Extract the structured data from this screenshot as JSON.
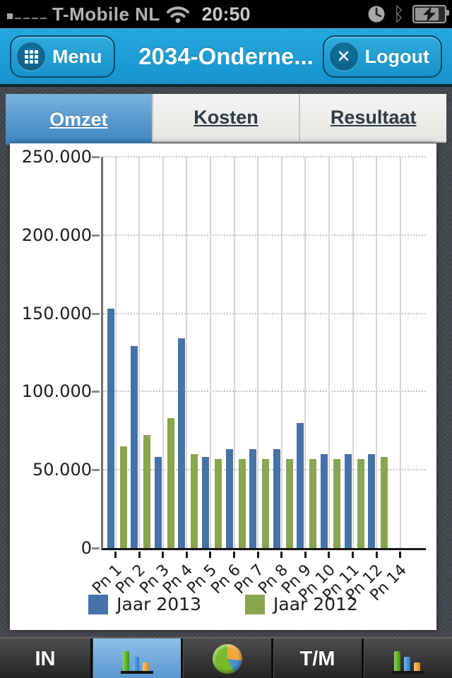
{
  "status_bar": {
    "carrier": "T-Mobile NL",
    "time": "20:50",
    "signal_level": "1 of 5",
    "icons": [
      "signal-strength-icon",
      "wifi-icon",
      "alarm-clock-icon",
      "bluetooth-icon",
      "battery-charging-icon"
    ]
  },
  "header": {
    "menu_label": "Menu",
    "title": "2034-Onderne...",
    "logout_label": "Logout"
  },
  "icons": {
    "bluetooth_glyph": "ᛒ",
    "logout_glyph": "✕"
  },
  "tabs": [
    {
      "label": "Omzet",
      "selected": true
    },
    {
      "label": "Kosten",
      "selected": false
    },
    {
      "label": "Resultaat",
      "selected": false
    }
  ],
  "chart_data": {
    "type": "bar",
    "title": "",
    "xlabel": "",
    "ylabel": "",
    "categories": [
      "Pn 1",
      "Pn 2",
      "Pn 3",
      "Pn 4",
      "Pn 5",
      "Pn 6",
      "Pn 7",
      "Pn 8",
      "Pn 9",
      "Pn 10",
      "Pn 11",
      "Pn 12",
      "Pn 14"
    ],
    "series": [
      {
        "name": "Jaar 2013",
        "color": "#4572a7",
        "values": [
          153000,
          129000,
          58000,
          134000,
          58000,
          63000,
          63000,
          63000,
          80000,
          60000,
          60000,
          60000,
          null
        ]
      },
      {
        "name": "Jaar 2012",
        "color": "#89a54e",
        "values": [
          65000,
          72000,
          83000,
          60000,
          57000,
          57000,
          57000,
          57000,
          57000,
          57000,
          57000,
          58000,
          null
        ]
      }
    ],
    "ylim": [
      0,
      250000
    ],
    "ytick_labels": [
      "250.000",
      "200.000",
      "150.000",
      "100.000",
      "50.000",
      "0"
    ],
    "grid": "horizontal dotted, vertical solid at category centers",
    "legend_position": "bottom"
  },
  "toolbar": {
    "items": [
      {
        "type": "label",
        "label": "IN",
        "selected": false
      },
      {
        "type": "icon",
        "icon": "bar-chart-icon",
        "selected": true
      },
      {
        "type": "icon",
        "icon": "pie-chart-icon",
        "selected": false
      },
      {
        "type": "label",
        "label": "T/M",
        "selected": false
      },
      {
        "type": "icon",
        "icon": "bar-chart-icon",
        "selected": false
      }
    ]
  },
  "colors": {
    "header_blue": "#1b9fd9",
    "selected_tab_blue": "#4a8fc4",
    "toolbar_selected_blue": "#6aa7d8",
    "series_2013_blue": "#4572a7",
    "series_2012_green": "#89a54e",
    "panel_background": "#ffffff"
  }
}
